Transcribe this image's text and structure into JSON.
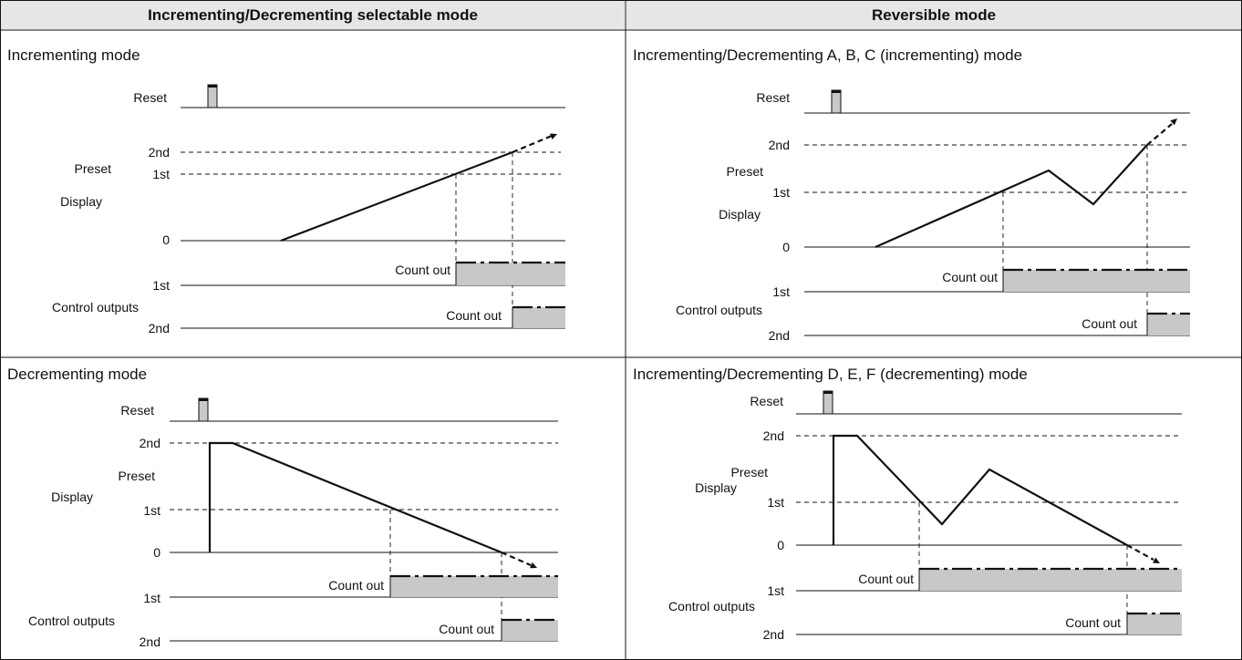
{
  "headers": {
    "left": "Incrementing/Decrementing selectable mode",
    "right": "Reversible mode"
  },
  "labels": {
    "reset": "Reset",
    "preset": "Preset",
    "display": "Display",
    "second": "2nd",
    "first": "1st",
    "zero": "0",
    "count_out": "Count out",
    "control_outputs": "Control outputs"
  },
  "panels": [
    {
      "title": "Incrementing mode"
    },
    {
      "title": "Incrementing/Decrementing A, B, C (incrementing) mode"
    },
    {
      "title": "Decrementing mode"
    },
    {
      "title": "Incrementing/Decrementing D, E, F (decrementing) mode"
    }
  ]
}
